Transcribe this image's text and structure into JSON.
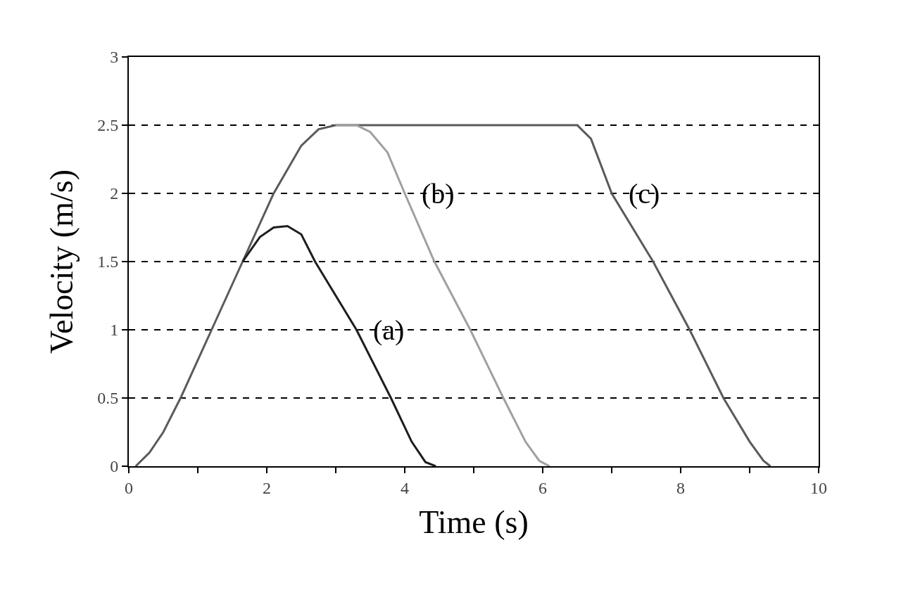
{
  "chart_data": {
    "type": "line",
    "xlabel": "Time (s)",
    "ylabel": "Velocity (m/s)",
    "xlim": [
      0,
      10
    ],
    "ylim": [
      0,
      3
    ],
    "xticks": [
      0,
      {
        "value": 1,
        "label": null
      },
      2,
      {
        "value": 3,
        "label": null
      },
      4,
      {
        "value": 5,
        "label": null
      },
      6,
      {
        "value": 7,
        "label": null
      },
      8,
      {
        "value": 9,
        "label": null
      },
      10
    ],
    "yticks": [
      0,
      0.5,
      1,
      1.5,
      2,
      2.5,
      3
    ],
    "grid": "y",
    "legend": false,
    "marker": "none",
    "line_style": "solid",
    "series": [
      {
        "name": "(c)",
        "color": "#5a5a5a",
        "x": [
          0.1,
          0.3,
          0.5,
          0.75,
          1.2,
          1.65,
          2.1,
          2.5,
          2.75,
          3.0,
          3.2,
          6.5,
          6.7,
          7.0,
          7.6,
          8.13,
          8.62,
          9.0,
          9.2,
          9.3
        ],
        "values": [
          0,
          0.1,
          0.25,
          0.5,
          1,
          1.5,
          2,
          2.35,
          2.47,
          2.5,
          2.5,
          2.5,
          2.4,
          2,
          1.5,
          1,
          0.5,
          0.18,
          0.04,
          0
        ]
      },
      {
        "name": "(b)",
        "color": "#a0a0a0",
        "x": [
          3.0,
          3.3,
          3.5,
          3.75,
          4.0,
          4.43,
          4.95,
          5.43,
          5.75,
          5.95,
          6.1
        ],
        "values": [
          2.5,
          2.5,
          2.45,
          2.3,
          2,
          1.5,
          1,
          0.5,
          0.18,
          0.04,
          0
        ]
      },
      {
        "name": "(a)",
        "color": "#1e1e1e",
        "x": [
          1.65,
          1.9,
          2.1,
          2.3,
          2.5,
          2.7,
          3.3,
          3.8,
          4.1,
          4.3,
          4.45
        ],
        "values": [
          1.5,
          1.68,
          1.75,
          1.76,
          1.7,
          1.5,
          1,
          0.5,
          0.18,
          0.03,
          0
        ]
      }
    ]
  }
}
